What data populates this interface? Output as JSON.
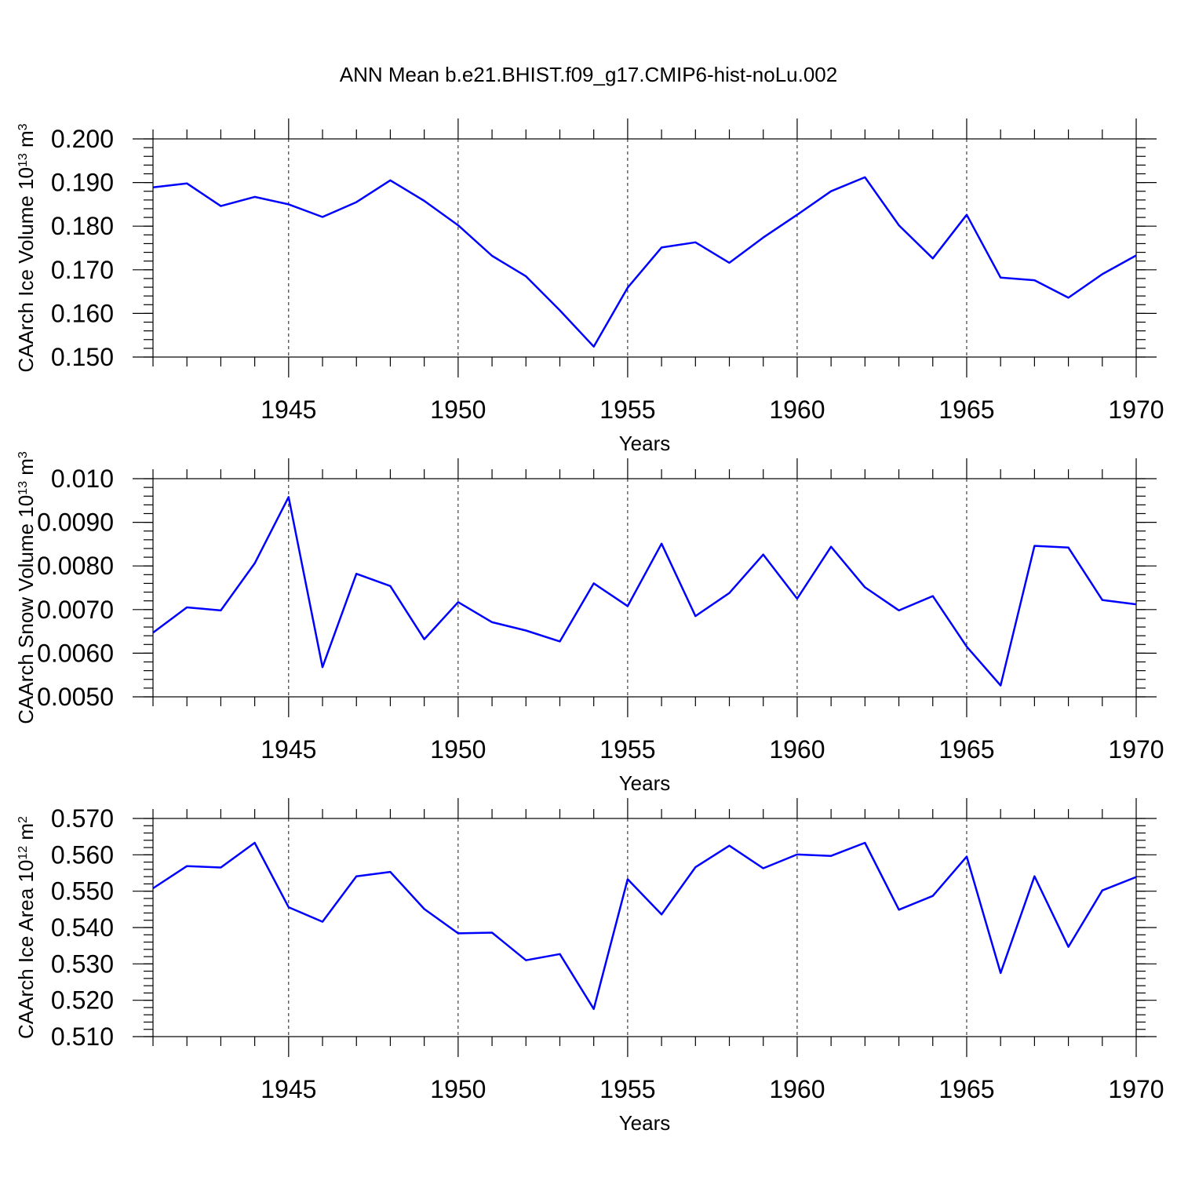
{
  "title": "ANN Mean b.e21.BHIST.f09_g17.CMIP6-hist-noLu.002",
  "colors": {
    "series": "#0000ff",
    "axes": "#000000",
    "background": "#ffffff"
  },
  "chart_data": [
    {
      "type": "line",
      "title": "",
      "xlabel": "Years",
      "ylabel": {
        "text": "CAArch Ice Volume 10",
        "exp": "13",
        "unit": " m",
        "unit_exp": "3"
      },
      "xlim": [
        1941,
        1970
      ],
      "ylim": [
        0.15,
        0.2
      ],
      "x_ticks": [
        1945,
        1950,
        1955,
        1960,
        1965,
        1970
      ],
      "x_tick_labels": [
        "1945",
        "1950",
        "1955",
        "1960",
        "1965",
        "1970"
      ],
      "y_ticks": [
        0.15,
        0.16,
        0.17,
        0.18,
        0.19,
        0.2
      ],
      "y_tick_labels": [
        "0.150",
        "0.160",
        "0.170",
        "0.180",
        "0.190",
        "0.200"
      ],
      "y_minor_step": 0.002,
      "grid": "vertical dashed at major x ticks",
      "series": [
        {
          "x": [
            1941,
            1942,
            1943,
            1944,
            1945,
            1946,
            1947,
            1948,
            1949,
            1950,
            1951,
            1952,
            1953,
            1954,
            1955,
            1956,
            1957,
            1958,
            1959,
            1960,
            1961,
            1962,
            1963,
            1964,
            1965,
            1966,
            1967,
            1968,
            1969,
            1970
          ],
          "values": [
            0.1889,
            0.1898,
            0.1846,
            0.1867,
            0.185,
            0.1821,
            0.1855,
            0.1905,
            0.1858,
            0.1802,
            0.1732,
            0.1685,
            0.1607,
            0.1524,
            0.1659,
            0.1751,
            0.1763,
            0.1716,
            0.1774,
            0.1826,
            0.188,
            0.1912,
            0.1802,
            0.1726,
            0.1826,
            0.1682,
            0.1676,
            0.1636,
            0.169,
            0.1733
          ]
        }
      ]
    },
    {
      "type": "line",
      "title": "",
      "xlabel": "Years",
      "ylabel": {
        "text": "CAArch Snow Volume 10",
        "exp": "13",
        "unit": " m",
        "unit_exp": "3"
      },
      "xlim": [
        1941,
        1970
      ],
      "ylim": [
        0.005,
        0.01
      ],
      "x_ticks": [
        1945,
        1950,
        1955,
        1960,
        1965,
        1970
      ],
      "x_tick_labels": [
        "1945",
        "1950",
        "1955",
        "1960",
        "1965",
        "1970"
      ],
      "y_ticks": [
        0.005,
        0.006,
        0.007,
        0.008,
        0.009,
        0.01
      ],
      "y_tick_labels": [
        "0.0050",
        "0.0060",
        "0.0070",
        "0.0080",
        "0.0090",
        "0.010"
      ],
      "y_minor_step": 0.0002,
      "grid": "vertical dashed at major x ticks",
      "series": [
        {
          "x": [
            1941,
            1942,
            1943,
            1944,
            1945,
            1946,
            1947,
            1948,
            1949,
            1950,
            1951,
            1952,
            1953,
            1954,
            1955,
            1956,
            1957,
            1958,
            1959,
            1960,
            1961,
            1962,
            1963,
            1964,
            1965,
            1966,
            1967,
            1968,
            1969,
            1970
          ],
          "values": [
            0.00647,
            0.00705,
            0.00698,
            0.00806,
            0.00958,
            0.00568,
            0.00782,
            0.00754,
            0.00632,
            0.00717,
            0.00671,
            0.00652,
            0.00627,
            0.0076,
            0.00708,
            0.00851,
            0.00685,
            0.00738,
            0.00826,
            0.00725,
            0.00844,
            0.00751,
            0.00698,
            0.00731,
            0.00615,
            0.00526,
            0.00846,
            0.00842,
            0.00722,
            0.00712
          ]
        }
      ]
    },
    {
      "type": "line",
      "title": "",
      "xlabel": "Years",
      "ylabel": {
        "text": "CAArch Ice Area 10",
        "exp": "12",
        "unit": " m",
        "unit_exp": "2"
      },
      "xlim": [
        1941,
        1970
      ],
      "ylim": [
        0.51,
        0.57
      ],
      "x_ticks": [
        1945,
        1950,
        1955,
        1960,
        1965,
        1970
      ],
      "x_tick_labels": [
        "1945",
        "1950",
        "1955",
        "1960",
        "1965",
        "1970"
      ],
      "y_ticks": [
        0.51,
        0.52,
        0.53,
        0.54,
        0.55,
        0.56,
        0.57
      ],
      "y_tick_labels": [
        "0.510",
        "0.520",
        "0.530",
        "0.540",
        "0.550",
        "0.560",
        "0.570"
      ],
      "y_minor_step": 0.002,
      "grid": "vertical dashed at major x ticks",
      "series": [
        {
          "x": [
            1941,
            1942,
            1943,
            1944,
            1945,
            1946,
            1947,
            1948,
            1949,
            1950,
            1951,
            1952,
            1953,
            1954,
            1955,
            1956,
            1957,
            1958,
            1959,
            1960,
            1961,
            1962,
            1963,
            1964,
            1965,
            1966,
            1967,
            1968,
            1969,
            1970
          ],
          "values": [
            0.5508,
            0.5569,
            0.5565,
            0.5633,
            0.5456,
            0.5416,
            0.5541,
            0.5553,
            0.5451,
            0.5384,
            0.5386,
            0.531,
            0.5327,
            0.5176,
            0.5533,
            0.5436,
            0.5566,
            0.5625,
            0.5563,
            0.5601,
            0.5597,
            0.5633,
            0.5449,
            0.5487,
            0.5595,
            0.5275,
            0.5541,
            0.5347,
            0.5502,
            0.5539
          ]
        }
      ]
    }
  ]
}
